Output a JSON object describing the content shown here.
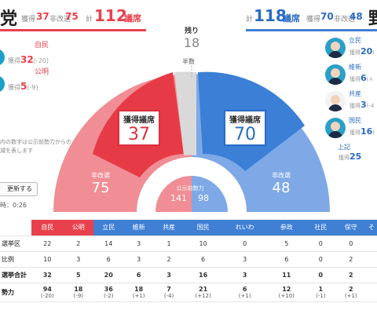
{
  "header_left": {
    "title_char": "党",
    "won_label": "獲得",
    "won": "37",
    "nonre_label": "非改選",
    "nonre": "75",
    "total_label": "計",
    "total": "112",
    "seats_unit": "議席"
  },
  "header_right": {
    "total_label": "計",
    "total": "118",
    "seats_unit": "議席",
    "won_label": "獲得",
    "won": "70",
    "nonre_label": "非改選",
    "nonre": "48",
    "title_char": "野"
  },
  "left_parties": [
    {
      "name": "自民",
      "prefix": "獲得",
      "value": "32",
      "change": "(-20)"
    },
    {
      "name": "公明",
      "prefix": "獲得",
      "value": "5",
      "change": "(-9)"
    }
  ],
  "right_parties": [
    {
      "name": "立民",
      "prefix": "獲得",
      "value": "20",
      "change": "("
    },
    {
      "name": "維新",
      "prefix": "獲得",
      "value": "6",
      "change": "(+"
    },
    {
      "name": "共産",
      "prefix": "獲得",
      "value": "3",
      "change": "(-4"
    },
    {
      "name": "国民",
      "prefix": "獲得",
      "value": "16",
      "change": "("
    },
    {
      "name": "上記",
      "prefix": "獲得",
      "value": "25",
      "change": ""
    }
  ],
  "arc": {
    "remaining_label": "残り",
    "remaining": "18",
    "half_label": "半数",
    "ruling_won_label": "獲得議席",
    "ruling_won": "37",
    "opp_won_label": "獲得議席",
    "opp_won": "70",
    "ruling_nonre_label": "非改選",
    "ruling_nonre": "75",
    "opp_nonre_label": "非改選",
    "opp_nonre": "48",
    "koji_label": "公示前勢力",
    "koji_ruling": "141",
    "koji_opp": "98"
  },
  "note_text": "内の数字は公示前勢力からの\n減を表します",
  "update_button": "更新する",
  "timer_text": "時：0:26",
  "colors": {
    "ruling_dark": "#e63b47",
    "ruling_light": "#f08a91",
    "opp_dark": "#3b7fd6",
    "opp_light": "#7fa9e6",
    "gray": "#d4d4d4"
  },
  "table": {
    "columns": [
      "自民",
      "公明",
      "立民",
      "維新",
      "共産",
      "国民",
      "れいわ",
      "参政",
      "社民",
      "保守",
      "そ"
    ],
    "rows": [
      {
        "label": "選挙区",
        "values": [
          "22",
          "2",
          "14",
          "3",
          "1",
          "10",
          "0",
          "5",
          "0",
          "0",
          ""
        ]
      },
      {
        "label": "比例",
        "values": [
          "10",
          "3",
          "6",
          "3",
          "2",
          "6",
          "3",
          "6",
          "0",
          "2",
          ""
        ]
      },
      {
        "label": "選挙合計",
        "values": [
          "32",
          "5",
          "20",
          "6",
          "3",
          "16",
          "3",
          "11",
          "0",
          "2",
          ""
        ]
      },
      {
        "label": "勢力",
        "values": [
          "94",
          "18",
          "36",
          "18",
          "7",
          "21",
          "6",
          "12",
          "1",
          "2",
          ""
        ],
        "changes": [
          "(-20)",
          "(-9)",
          "(-2)",
          "(+1)",
          "(-4)",
          "(+12)",
          "(+1)",
          "(+10)",
          "(-1)",
          "(+1)",
          ""
        ]
      }
    ]
  }
}
